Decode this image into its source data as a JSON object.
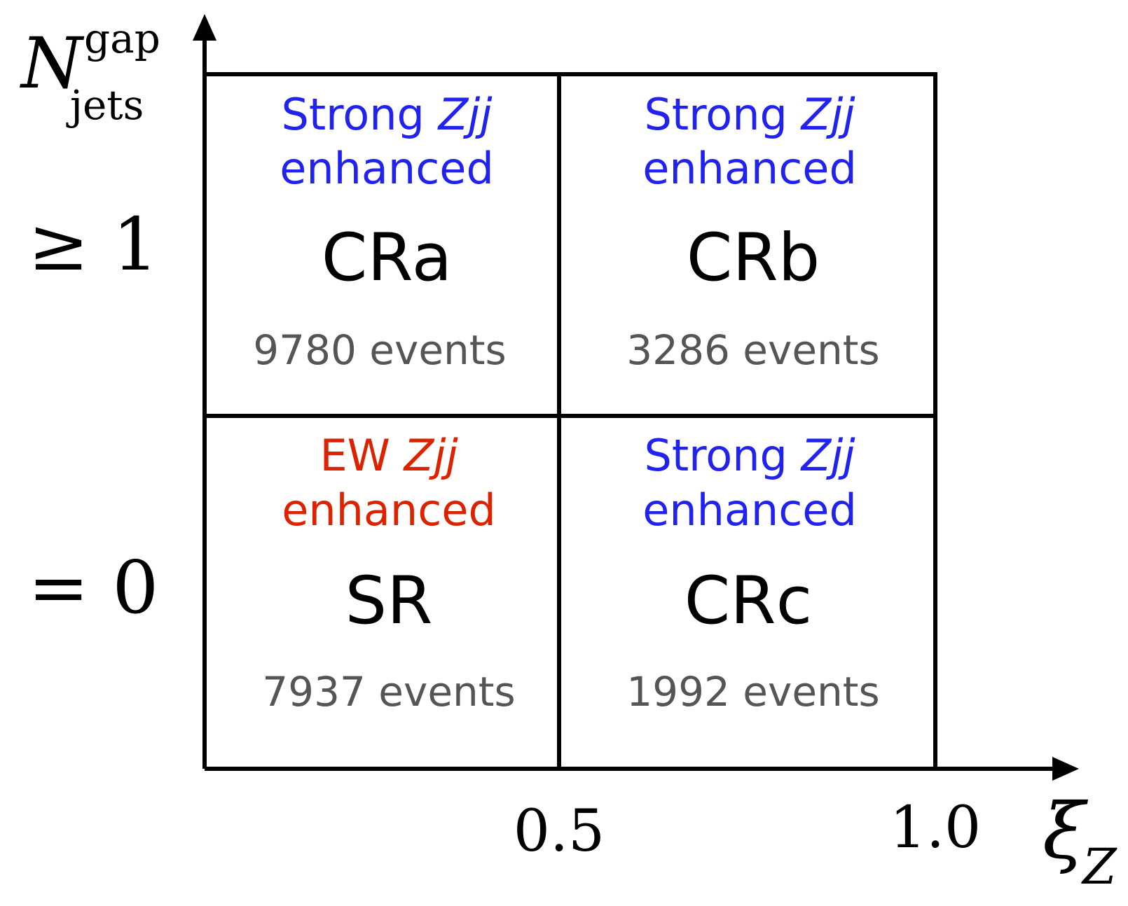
{
  "axes": {
    "y_label_main": "N",
    "y_label_sup": "gap",
    "y_label_sub": "jets",
    "x_label_main": "ξ",
    "x_label_sub": "Z",
    "x_ticks": [
      "0.5",
      "1.0"
    ],
    "y_rows": [
      "≥ 1",
      "= 0"
    ]
  },
  "colors": {
    "strong": "#2222ee",
    "ew": "#dd2200",
    "count": "#555555"
  },
  "regions": [
    {
      "name": "CRa",
      "proc_prefix": "Strong ",
      "proc_italic": "Zjj",
      "proc_line2": "enhanced",
      "color_key": "strong",
      "count": "9780 events"
    },
    {
      "name": "CRb",
      "proc_prefix": "Strong ",
      "proc_italic": "Zjj",
      "proc_line2": "enhanced",
      "color_key": "strong",
      "count": "3286 events"
    },
    {
      "name": "SR",
      "proc_prefix": "EW ",
      "proc_italic": "Zjj",
      "proc_line2": "enhanced",
      "color_key": "ew",
      "count": "7937 events"
    },
    {
      "name": "CRc",
      "proc_prefix": "Strong ",
      "proc_italic": "Zjj",
      "proc_line2": "enhanced",
      "color_key": "strong",
      "count": "1992 events"
    }
  ]
}
